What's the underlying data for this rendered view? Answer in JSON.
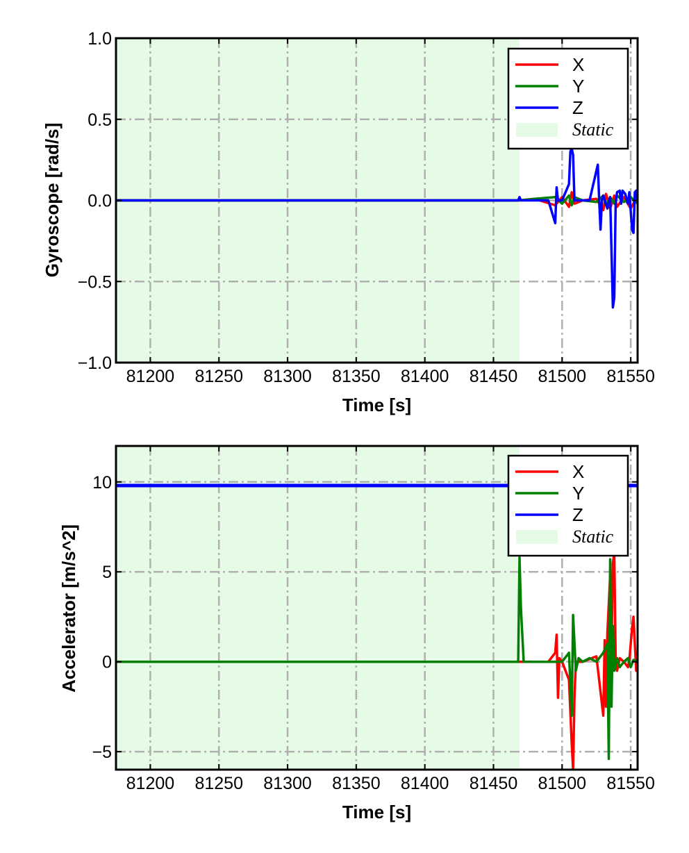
{
  "chart_data": [
    {
      "type": "line",
      "xlabel": "Time [s]",
      "ylabel": "Gyroscope [rad/s]",
      "xlim": [
        81175,
        81555
      ],
      "ylim": [
        -1.0,
        1.0
      ],
      "xticks": [
        81200,
        81250,
        81300,
        81350,
        81400,
        81450,
        81500,
        81550
      ],
      "xtick_labels": [
        "81200",
        "81250",
        "81300",
        "81350",
        "81400",
        "81450",
        "81500",
        "81550"
      ],
      "yticks": [
        -1.0,
        -0.5,
        0.0,
        0.5,
        1.0
      ],
      "ytick_labels": [
        "−1.0",
        "−0.5",
        "0.0",
        "0.5",
        "1.0"
      ],
      "grid": true,
      "legend_position": "top-right",
      "static_region": [
        81175,
        81469
      ],
      "series": [
        {
          "name": "X",
          "color": "#ff0000",
          "x": [
            81175,
            81469,
            81480,
            81495,
            81500,
            81505,
            81507,
            81509,
            81515,
            81525,
            81530,
            81532,
            81535,
            81538,
            81540,
            81545,
            81550,
            81555
          ],
          "y": [
            0,
            0,
            0.01,
            -0.03,
            0.02,
            -0.04,
            0.05,
            -0.02,
            0,
            0.01,
            -0.06,
            0.04,
            -0.05,
            0.03,
            -0.04,
            0.02,
            -0.05,
            0.03
          ]
        },
        {
          "name": "Y",
          "color": "#008000",
          "x": [
            81175,
            81469,
            81480,
            81495,
            81500,
            81505,
            81507,
            81509,
            81515,
            81525,
            81530,
            81532,
            81535,
            81538,
            81540,
            81545,
            81550,
            81555
          ],
          "y": [
            0,
            0,
            0.01,
            0.02,
            -0.02,
            0.03,
            -0.03,
            0.02,
            0,
            -0.01,
            0.03,
            -0.03,
            0.02,
            -0.02,
            0.03,
            -0.01,
            0.02,
            -0.02
          ]
        },
        {
          "name": "Z",
          "color": "#0000ff",
          "x": [
            81175,
            81468,
            81469,
            81470,
            81490,
            81495,
            81496,
            81497,
            81500,
            81505,
            81506,
            81507,
            81508,
            81509,
            81512,
            81520,
            81526,
            81527,
            81528,
            81529,
            81530,
            81533,
            81535,
            81537,
            81538,
            81539,
            81540,
            81542,
            81543,
            81544,
            81546,
            81548,
            81549,
            81551,
            81552,
            81553,
            81554,
            81555
          ],
          "y": [
            0,
            0,
            0.02,
            0,
            0,
            -0.14,
            0.08,
            0,
            0,
            0.1,
            0.3,
            0.32,
            0.28,
            0,
            0,
            0,
            0.22,
            0.0,
            -0.18,
            0.0,
            0.03,
            -0.05,
            0.02,
            -0.66,
            -0.6,
            -0.02,
            0.05,
            0.06,
            -0.02,
            0.06,
            0.04,
            -0.02,
            0.05,
            -0.18,
            -0.2,
            0.05,
            0.06,
            0.0
          ]
        }
      ]
    },
    {
      "type": "line",
      "xlabel": "Time [s]",
      "ylabel": "Accelerator [m/s^2]",
      "xlim": [
        81175,
        81555
      ],
      "ylim": [
        -6,
        12
      ],
      "xticks": [
        81200,
        81250,
        81300,
        81350,
        81400,
        81450,
        81500,
        81550
      ],
      "xtick_labels": [
        "81200",
        "81250",
        "81300",
        "81350",
        "81400",
        "81450",
        "81500",
        "81550"
      ],
      "yticks": [
        -5,
        0,
        5,
        10
      ],
      "ytick_labels": [
        "−5",
        "0",
        "5",
        "10"
      ],
      "grid": true,
      "legend_position": "top-right",
      "static_region": [
        81175,
        81469
      ],
      "series": [
        {
          "name": "X",
          "color": "#ff0000",
          "x": [
            81175,
            81469,
            81490,
            81495,
            81496,
            81497,
            81498,
            81500,
            81505,
            81507,
            81508,
            81509,
            81510,
            81515,
            81525,
            81530,
            81531,
            81532,
            81533,
            81535,
            81536,
            81537,
            81538,
            81539,
            81540,
            81542,
            81545,
            81548,
            81549,
            81551,
            81552,
            81553,
            81554,
            81555
          ],
          "y": [
            0,
            0,
            0,
            0.5,
            1.5,
            -2.0,
            0.2,
            0,
            -1.0,
            -4.5,
            -6.0,
            -2.0,
            0,
            0,
            0.3,
            -3.0,
            1.2,
            -2.5,
            1.6,
            4.8,
            0.5,
            5.5,
            6.0,
            0.2,
            -0.5,
            0.2,
            0.0,
            -0.3,
            0.1,
            1.9,
            2.5,
            1.0,
            -0.5,
            0.0
          ]
        },
        {
          "name": "Y",
          "color": "#008000",
          "x": [
            81175,
            81468,
            81469,
            81470,
            81472,
            81480,
            81490,
            81500,
            81505,
            81507,
            81508,
            81510,
            81512,
            81515,
            81520,
            81525,
            81530,
            81533,
            81534,
            81535,
            81536,
            81537,
            81538,
            81540,
            81542,
            81545,
            81548,
            81550,
            81552,
            81555
          ],
          "y": [
            0,
            0,
            5.8,
            3.0,
            0,
            0,
            0,
            0,
            0.5,
            -3.0,
            2.6,
            -0.5,
            0.2,
            0,
            0.2,
            0,
            0.5,
            1.0,
            -5.4,
            5.7,
            -2.5,
            2.0,
            -0.5,
            0.2,
            -0.3,
            0.0,
            0.2,
            -0.3,
            0.1,
            0.0
          ]
        },
        {
          "name": "Z",
          "color": "#0000ff",
          "x": [
            81175,
            81555
          ],
          "y": [
            9.8,
            9.8
          ]
        }
      ]
    }
  ],
  "legend": {
    "items": [
      {
        "label": "X",
        "color": "#ff0000"
      },
      {
        "label": "Y",
        "color": "#008000"
      },
      {
        "label": "Z",
        "color": "#0000ff"
      },
      {
        "label": "Static",
        "color": "#e6fbe6"
      }
    ]
  }
}
